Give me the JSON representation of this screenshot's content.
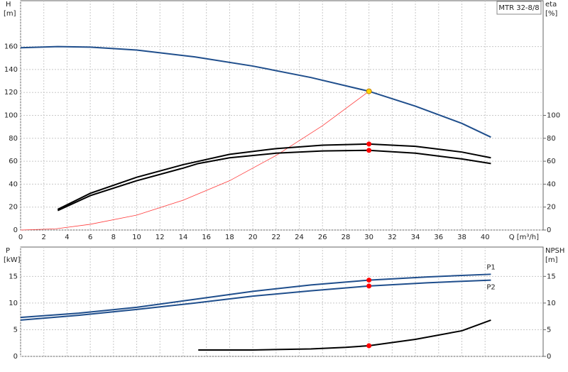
{
  "chart_data": [
    {
      "type": "line",
      "annotation": "MTR 32-8/8",
      "ylabel": "H",
      "yunit": "[m]",
      "y2label": "eta",
      "y2unit": "[%]",
      "xlabel": "Q [m³/h]",
      "xlim": [
        0,
        45
      ],
      "xticks": [
        0,
        2,
        4,
        6,
        8,
        10,
        12,
        14,
        16,
        18,
        20,
        22,
        24,
        26,
        28,
        30,
        32,
        34,
        36,
        38,
        40
      ],
      "ylim": [
        0,
        200
      ],
      "yticks": [
        0,
        20,
        40,
        60,
        80,
        100,
        120,
        140,
        160
      ],
      "y2lim": [
        0,
        200
      ],
      "y2ticks": [
        0,
        20,
        40,
        60,
        80,
        100
      ],
      "grid": true,
      "series": [
        {
          "color": "#1f4e8c",
          "x": [
            0,
            3.2,
            6,
            10,
            15,
            20,
            25,
            30,
            34,
            38,
            40.5
          ],
          "values": [
            159,
            160,
            159.5,
            157,
            151,
            143,
            133,
            121,
            108,
            93,
            81
          ]
        },
        {
          "color": "#ff3b3b",
          "x": [
            0,
            3,
            6,
            10,
            14,
            18,
            22,
            26,
            30
          ],
          "values": [
            0,
            1,
            5,
            13,
            26,
            43,
            65,
            91,
            121
          ]
        },
        {
          "color": "#000000",
          "axis": "y2",
          "x": [
            3.2,
            6,
            10,
            14,
            18,
            22,
            26,
            30,
            34,
            38,
            40.5
          ],
          "values": [
            18,
            32,
            46,
            57,
            66,
            71,
            74,
            75,
            73,
            68,
            63
          ]
        },
        {
          "color": "#000000",
          "axis": "y2",
          "x": [
            3.2,
            6,
            10,
            14,
            15.3,
            18,
            22,
            26,
            30,
            34,
            38,
            40.5
          ],
          "values": [
            17,
            30,
            43,
            54,
            58,
            63,
            67,
            69,
            69.5,
            67,
            62,
            58
          ]
        }
      ],
      "points": [
        {
          "color": "#ffd700",
          "x": 30,
          "value": 121
        },
        {
          "color": "#ff0000",
          "axis": "y2",
          "x": 30,
          "value": 75
        },
        {
          "color": "#ff0000",
          "axis": "y2",
          "x": 30,
          "value": 69.5
        }
      ]
    },
    {
      "type": "line",
      "ylabel": "P",
      "yunit": "[kW]",
      "y2label": "NPSH",
      "y2unit": "[m]",
      "xlim": [
        0,
        45
      ],
      "ylim": [
        0,
        20.5
      ],
      "yticks": [
        0,
        5,
        10,
        15
      ],
      "y2lim": [
        0,
        20.5
      ],
      "y2ticks": [
        0,
        5,
        10,
        15
      ],
      "grid": true,
      "series": [
        {
          "name": "P1",
          "color": "#1f4e8c",
          "x": [
            0,
            5,
            10,
            15,
            20,
            25,
            30,
            35,
            40.5
          ],
          "values": [
            7.3,
            8.1,
            9.2,
            10.7,
            12.2,
            13.4,
            14.3,
            14.9,
            15.4
          ]
        },
        {
          "name": "P2",
          "color": "#1f4e8c",
          "x": [
            0,
            5,
            10,
            15,
            20,
            25,
            30,
            35,
            40.5
          ],
          "values": [
            6.8,
            7.7,
            8.8,
            10,
            11.3,
            12.3,
            13.2,
            13.8,
            14.3
          ]
        },
        {
          "color": "#000000",
          "axis": "y2",
          "x": [
            15.3,
            20,
            25,
            28,
            30,
            34,
            38,
            40.5
          ],
          "values": [
            1.2,
            1.2,
            1.4,
            1.7,
            2,
            3.2,
            4.8,
            6.8
          ]
        }
      ],
      "points": [
        {
          "color": "#ff0000",
          "x": 30,
          "value": 14.3
        },
        {
          "color": "#ff0000",
          "x": 30,
          "value": 13.2
        },
        {
          "color": "#ff0000",
          "axis": "y2",
          "x": 30,
          "value": 2
        }
      ]
    }
  ]
}
